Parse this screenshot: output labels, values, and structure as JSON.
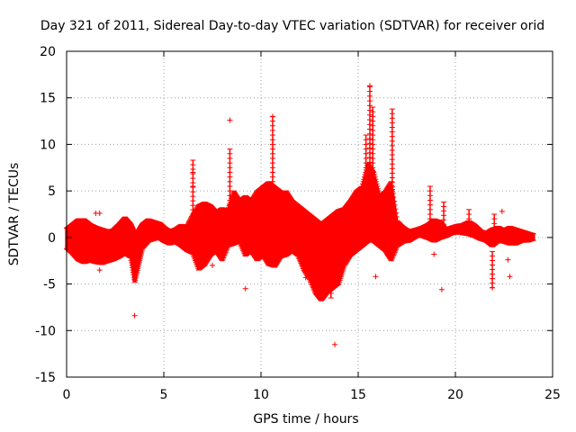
{
  "chart_data": {
    "type": "scatter",
    "title": "Day 321 of 2011, Sidereal Day-to-day VTEC variation (SDTVAR) for receiver orid",
    "xlabel": "GPS time / hours",
    "ylabel": "SDTVAR / TECUs",
    "xlim": [
      0,
      25
    ],
    "ylim": [
      -15,
      20
    ],
    "xticks": [
      0,
      5,
      10,
      15,
      20,
      25
    ],
    "yticks": [
      -15,
      -10,
      -5,
      0,
      5,
      10,
      15,
      20
    ],
    "grid": true,
    "marker": "+",
    "color": "#ff0000",
    "band": [
      [
        0.0,
        -1.2,
        1.0
      ],
      [
        0.3,
        -1.8,
        1.5
      ],
      [
        0.6,
        -2.5,
        2.0
      ],
      [
        0.9,
        -2.8,
        2.0
      ],
      [
        1.2,
        -2.6,
        1.5
      ],
      [
        1.5,
        -2.8,
        1.2
      ],
      [
        1.8,
        -2.9,
        1.0
      ],
      [
        2.1,
        -2.7,
        0.8
      ],
      [
        2.4,
        -2.5,
        0.9
      ],
      [
        2.7,
        -2.2,
        1.5
      ],
      [
        3.0,
        -1.8,
        2.2
      ],
      [
        3.3,
        -2.2,
        1.5
      ],
      [
        3.5,
        -4.8,
        0.5
      ],
      [
        3.7,
        -3.0,
        0.8
      ],
      [
        3.9,
        -1.2,
        1.5
      ],
      [
        4.2,
        -0.5,
        2.0
      ],
      [
        4.5,
        -0.3,
        1.8
      ],
      [
        4.8,
        -0.2,
        1.6
      ],
      [
        5.0,
        -0.5,
        1.2
      ],
      [
        5.3,
        -0.8,
        0.8
      ],
      [
        5.6,
        -0.6,
        1.0
      ],
      [
        5.9,
        -1.0,
        1.4
      ],
      [
        6.2,
        -1.5,
        1.3
      ],
      [
        6.5,
        -1.8,
        2.5
      ],
      [
        6.8,
        -3.5,
        3.5
      ],
      [
        7.1,
        -3.0,
        3.8
      ],
      [
        7.4,
        -2.0,
        3.5
      ],
      [
        7.7,
        -1.5,
        2.8
      ],
      [
        8.0,
        -2.5,
        3.2
      ],
      [
        8.3,
        -1.0,
        3.0
      ],
      [
        8.6,
        -0.8,
        5.0
      ],
      [
        8.9,
        -0.5,
        4.0
      ],
      [
        9.2,
        -2.0,
        4.5
      ],
      [
        9.5,
        -1.5,
        4.0
      ],
      [
        9.8,
        -2.5,
        5.0
      ],
      [
        10.1,
        -2.0,
        5.5
      ],
      [
        10.4,
        -3.0,
        6.0
      ],
      [
        10.7,
        -3.2,
        5.5
      ],
      [
        11.0,
        -2.2,
        5.0
      ],
      [
        11.3,
        -2.0,
        5.0
      ],
      [
        11.6,
        -1.5,
        4.0
      ],
      [
        11.9,
        -2.0,
        3.5
      ],
      [
        12.2,
        -3.5,
        3.0
      ],
      [
        12.5,
        -4.5,
        2.5
      ],
      [
        12.8,
        -6.0,
        2.0
      ],
      [
        13.1,
        -6.8,
        1.5
      ],
      [
        13.4,
        -6.0,
        2.0
      ],
      [
        13.7,
        -5.5,
        2.5
      ],
      [
        14.0,
        -5.0,
        3.0
      ],
      [
        14.3,
        -3.0,
        3.2
      ],
      [
        14.6,
        -2.0,
        4.0
      ],
      [
        14.9,
        -1.5,
        5.0
      ],
      [
        15.2,
        -1.0,
        5.5
      ],
      [
        15.5,
        -0.5,
        8.0
      ],
      [
        15.8,
        -0.5,
        7.0
      ],
      [
        16.1,
        -1.0,
        4.5
      ],
      [
        16.4,
        -1.5,
        5.0
      ],
      [
        16.7,
        -2.5,
        6.0
      ],
      [
        17.0,
        -1.0,
        1.8
      ],
      [
        17.3,
        -0.6,
        1.2
      ],
      [
        17.6,
        -0.5,
        0.8
      ],
      [
        18.0,
        0.0,
        1.0
      ],
      [
        18.3,
        0.0,
        1.2
      ],
      [
        18.6,
        -0.2,
        1.5
      ],
      [
        18.9,
        -0.5,
        2.0
      ],
      [
        19.2,
        -0.2,
        1.8
      ],
      [
        19.5,
        0.0,
        1.0
      ],
      [
        19.8,
        0.3,
        1.2
      ],
      [
        20.1,
        0.4,
        1.4
      ],
      [
        20.4,
        0.3,
        1.5
      ],
      [
        20.7,
        0.2,
        1.8
      ],
      [
        21.0,
        0.0,
        1.4
      ],
      [
        21.3,
        -0.3,
        0.8
      ],
      [
        21.6,
        -0.5,
        0.6
      ],
      [
        21.9,
        -1.0,
        1.0
      ],
      [
        22.2,
        -0.5,
        1.2
      ],
      [
        22.5,
        -0.6,
        0.9
      ],
      [
        22.8,
        -0.8,
        1.2
      ],
      [
        23.1,
        -0.8,
        1.0
      ],
      [
        23.4,
        -0.5,
        0.8
      ],
      [
        23.7,
        -0.5,
        0.6
      ],
      [
        24.0,
        -0.3,
        0.4
      ]
    ],
    "spikes": [
      {
        "x": 3.5,
        "ymin": -4.8,
        "ymax": -2.0
      },
      {
        "x": 6.5,
        "ymin": 2.0,
        "ymax": 8.3
      },
      {
        "x": 8.4,
        "ymin": 2.0,
        "ymax": 9.5
      },
      {
        "x": 10.6,
        "ymin": 0.0,
        "ymax": 13.0
      },
      {
        "x": 13.6,
        "ymin": -6.5,
        "ymax": -2.0
      },
      {
        "x": 15.4,
        "ymin": 2.0,
        "ymax": 11.0
      },
      {
        "x": 15.6,
        "ymin": 3.0,
        "ymax": 16.2
      },
      {
        "x": 15.75,
        "ymin": 2.0,
        "ymax": 14.0
      },
      {
        "x": 16.75,
        "ymin": 1.0,
        "ymax": 13.8
      },
      {
        "x": 18.7,
        "ymin": 0.5,
        "ymax": 5.5
      },
      {
        "x": 19.4,
        "ymin": 0.0,
        "ymax": 3.8
      },
      {
        "x": 20.7,
        "ymin": 0.5,
        "ymax": 3.0
      },
      {
        "x": 21.9,
        "ymin": -5.4,
        "ymax": -1.5
      },
      {
        "x": 22.0,
        "ymin": 0.5,
        "ymax": 2.5
      }
    ],
    "points": [
      {
        "x": 1.5,
        "y": 2.6
      },
      {
        "x": 1.7,
        "y": 2.6
      },
      {
        "x": 3.5,
        "y": -8.4
      },
      {
        "x": 8.4,
        "y": 12.6
      },
      {
        "x": 9.2,
        "y": -5.5
      },
      {
        "x": 10.6,
        "y": 13.0
      },
      {
        "x": 12.3,
        "y": -4.3
      },
      {
        "x": 13.8,
        "y": -11.5
      },
      {
        "x": 15.6,
        "y": 16.3
      },
      {
        "x": 15.9,
        "y": -4.2
      },
      {
        "x": 18.9,
        "y": -1.8
      },
      {
        "x": 19.3,
        "y": -5.6
      },
      {
        "x": 21.9,
        "y": -5.4
      },
      {
        "x": 22.4,
        "y": 2.8
      },
      {
        "x": 22.7,
        "y": -2.4
      },
      {
        "x": 22.8,
        "y": -4.2
      },
      {
        "x": 6.5,
        "y": 7.0
      },
      {
        "x": 6.5,
        "y": 5.5
      },
      {
        "x": 7.5,
        "y": -3.0
      },
      {
        "x": 1.7,
        "y": -3.5
      }
    ]
  }
}
